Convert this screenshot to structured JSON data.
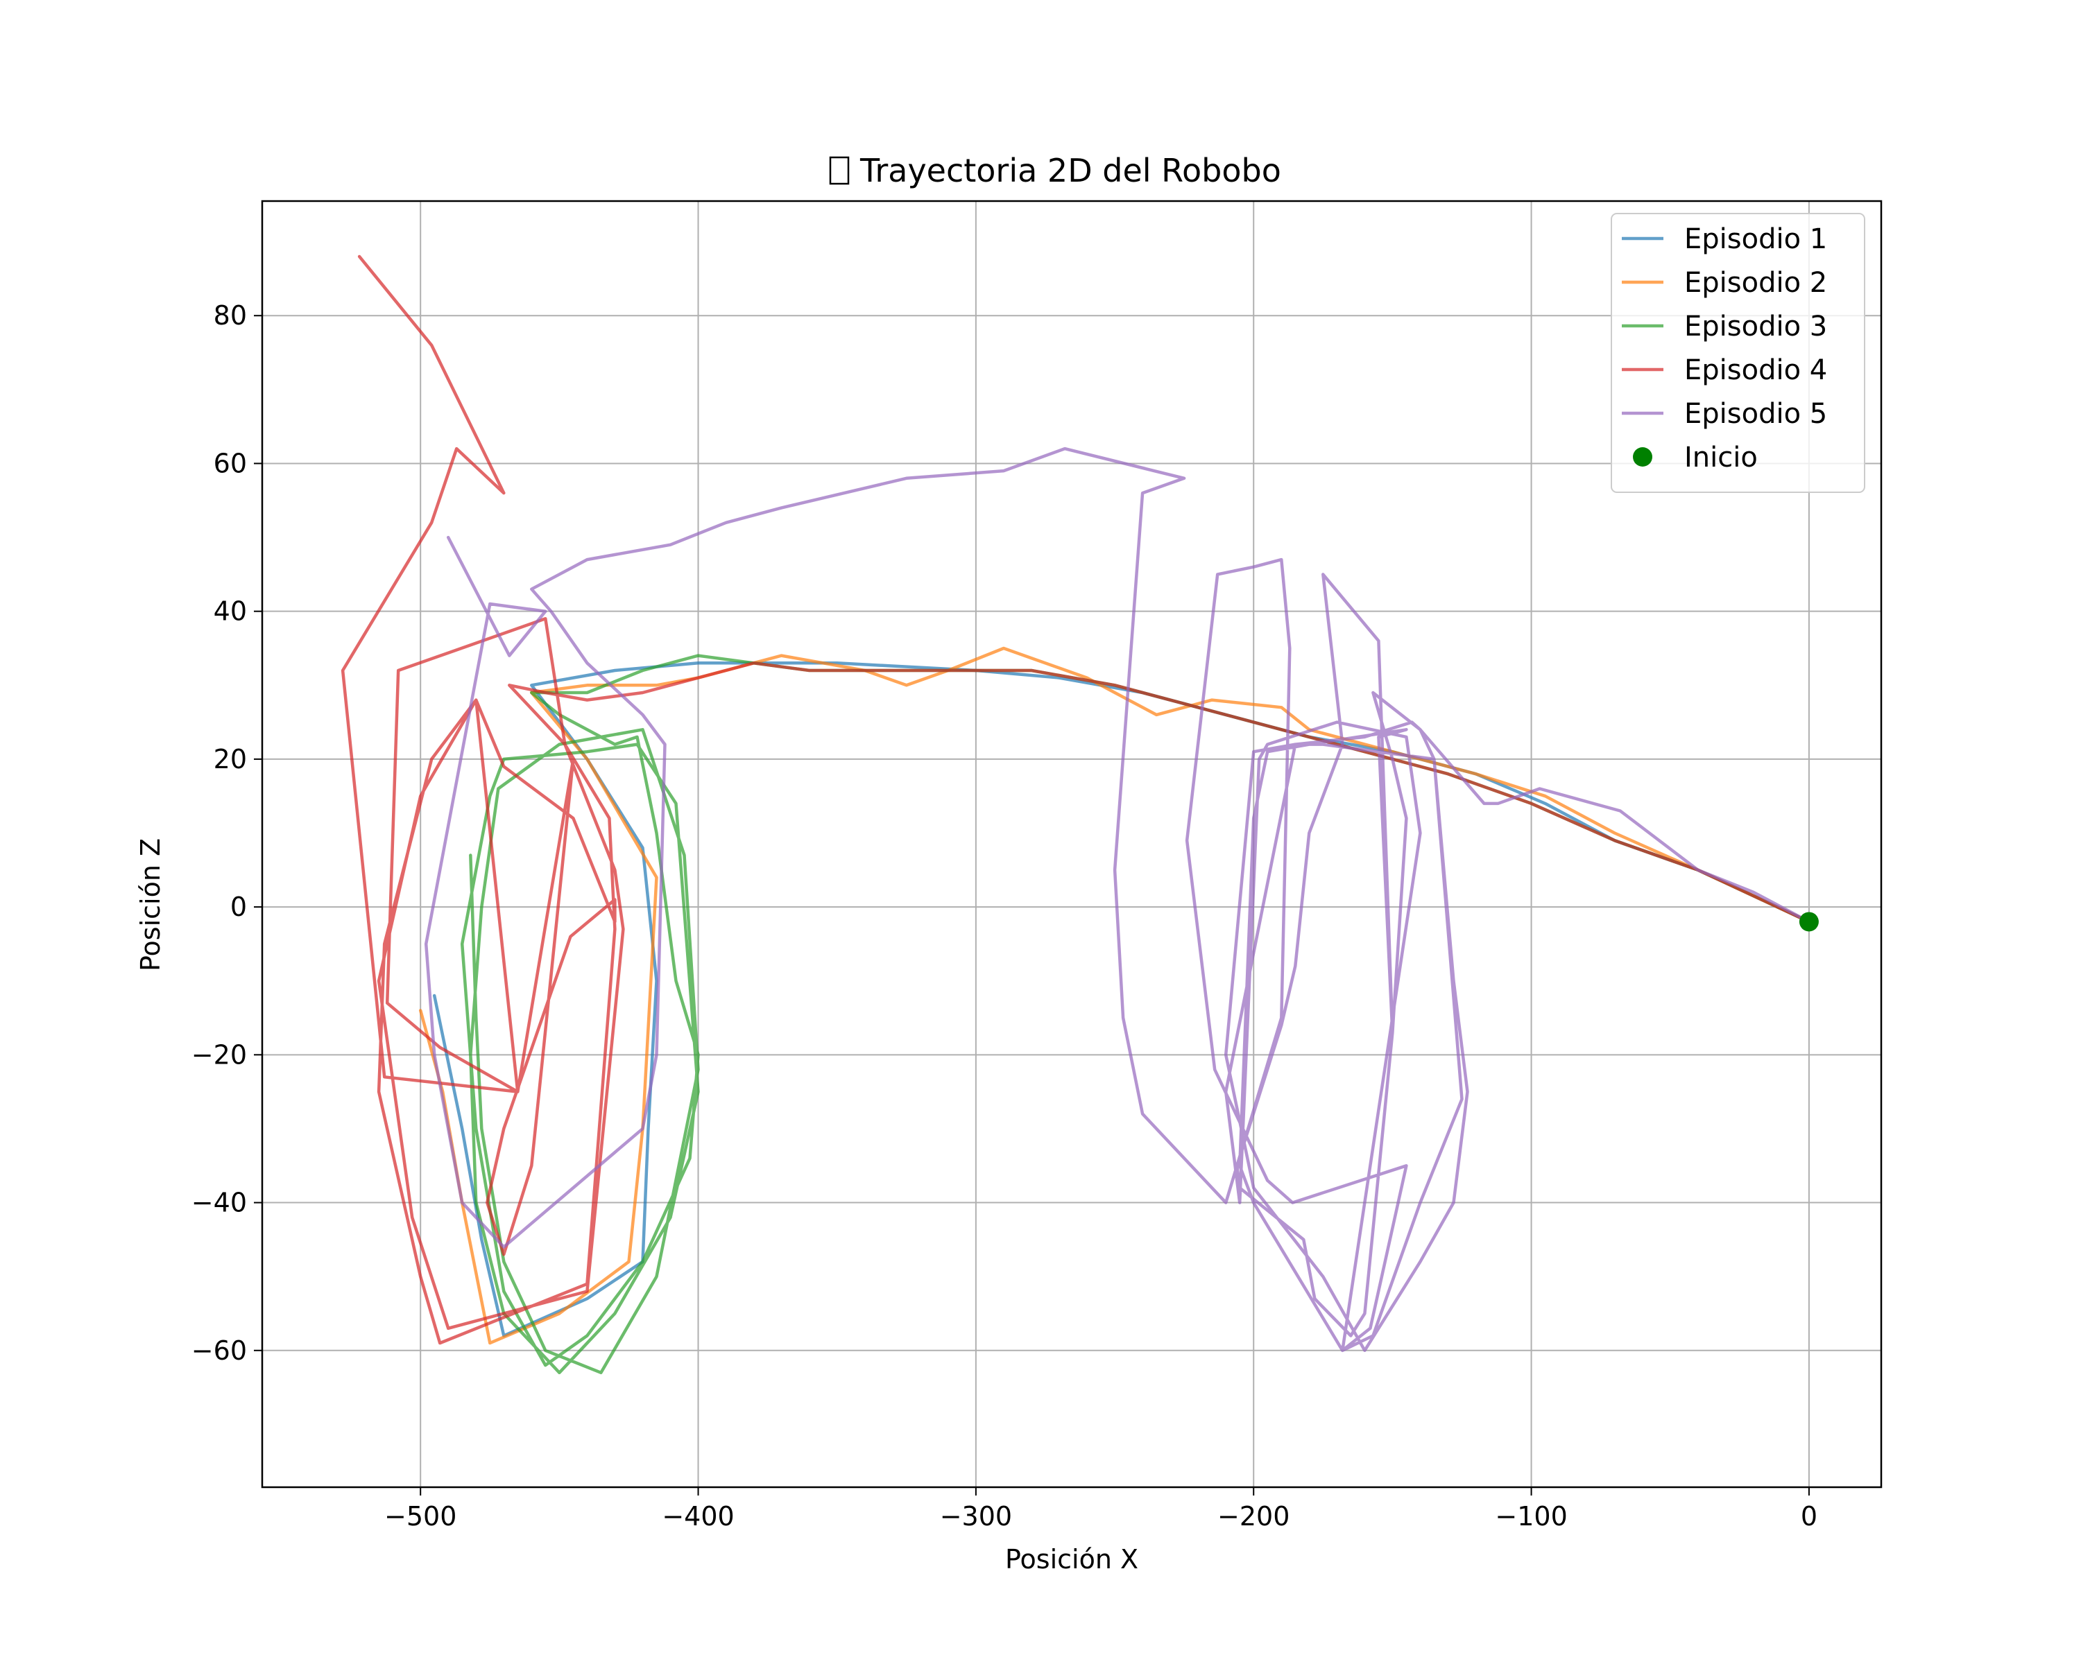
{
  "chart_data": {
    "type": "line",
    "title": "Trayectoria 2D del Robobo",
    "title_icon": "missing-glyph-box",
    "xlabel": "Posición X",
    "ylabel": "Posición Z",
    "xlim": [
      -557,
      26
    ],
    "ylim": [
      -78.5,
      95.5
    ],
    "xticks": [
      -500,
      -400,
      -300,
      -200,
      -100,
      0
    ],
    "yticks": [
      -60,
      -40,
      -20,
      0,
      20,
      40,
      60,
      80
    ],
    "xtick_labels": [
      "−500",
      "−400",
      "−300",
      "−200",
      "−100",
      "0"
    ],
    "ytick_labels": [
      "−60",
      "−40",
      "−20",
      "0",
      "20",
      "40",
      "60",
      "80"
    ],
    "grid": true,
    "legend_position": "top-right",
    "series": [
      {
        "name": "Episodio 1",
        "color": "#1f77b4",
        "points": [
          [
            0,
            -2
          ],
          [
            -40,
            5
          ],
          [
            -70,
            9
          ],
          [
            -95,
            14
          ],
          [
            -120,
            18
          ],
          [
            -150,
            21
          ],
          [
            -180,
            23
          ],
          [
            -210,
            26
          ],
          [
            -240,
            29
          ],
          [
            -270,
            31
          ],
          [
            -300,
            32
          ],
          [
            -350,
            33
          ],
          [
            -400,
            33
          ],
          [
            -430,
            32
          ],
          [
            -460,
            30
          ],
          [
            -440,
            20
          ],
          [
            -420,
            8
          ],
          [
            -415,
            -10
          ],
          [
            -418,
            -30
          ],
          [
            -420,
            -48
          ],
          [
            -440,
            -53
          ],
          [
            -470,
            -58
          ],
          [
            -478,
            -45
          ],
          [
            -485,
            -30
          ],
          [
            -495,
            -12
          ]
        ]
      },
      {
        "name": "Episodio 2",
        "color": "#ff7f0e",
        "points": [
          [
            0,
            -2
          ],
          [
            -40,
            5
          ],
          [
            -70,
            10
          ],
          [
            -95,
            15
          ],
          [
            -120,
            18
          ],
          [
            -150,
            21
          ],
          [
            -180,
            24
          ],
          [
            -190,
            27
          ],
          [
            -215,
            28
          ],
          [
            -235,
            26
          ],
          [
            -245,
            28
          ],
          [
            -260,
            31
          ],
          [
            -290,
            35
          ],
          [
            -310,
            32
          ],
          [
            -325,
            30
          ],
          [
            -340,
            32
          ],
          [
            -370,
            34
          ],
          [
            -400,
            31
          ],
          [
            -415,
            30
          ],
          [
            -440,
            30
          ],
          [
            -460,
            29
          ],
          [
            -440,
            20
          ],
          [
            -415,
            4
          ],
          [
            -420,
            -30
          ],
          [
            -425,
            -48
          ],
          [
            -450,
            -55
          ],
          [
            -475,
            -59
          ],
          [
            -485,
            -40
          ],
          [
            -492,
            -25
          ],
          [
            -500,
            -14
          ]
        ]
      },
      {
        "name": "Episodio 3",
        "color": "#2ca02c",
        "points": [
          [
            0,
            -2
          ],
          [
            -40,
            5
          ],
          [
            -70,
            9
          ],
          [
            -100,
            14
          ],
          [
            -130,
            18
          ],
          [
            -160,
            21
          ],
          [
            -190,
            24
          ],
          [
            -220,
            27
          ],
          [
            -250,
            30
          ],
          [
            -280,
            32
          ],
          [
            -310,
            32
          ],
          [
            -330,
            32
          ],
          [
            -360,
            32
          ],
          [
            -400,
            34
          ],
          [
            -420,
            32
          ],
          [
            -440,
            29
          ],
          [
            -460,
            29
          ],
          [
            -450,
            26
          ],
          [
            -430,
            22
          ],
          [
            -422,
            23
          ],
          [
            -415,
            10
          ],
          [
            -408,
            -10
          ],
          [
            -400,
            -20
          ],
          [
            -403,
            -34
          ],
          [
            -420,
            -48
          ],
          [
            -440,
            -58
          ],
          [
            -455,
            -62
          ],
          [
            -470,
            -52
          ],
          [
            -480,
            -30
          ],
          [
            -485,
            -5
          ],
          [
            -475,
            15
          ],
          [
            -470,
            20
          ],
          [
            -440,
            21
          ],
          [
            -422,
            22
          ],
          [
            -408,
            14
          ],
          [
            -400,
            -25
          ],
          [
            -410,
            -42
          ],
          [
            -430,
            -55
          ],
          [
            -450,
            -63
          ],
          [
            -470,
            -55
          ],
          [
            -480,
            -40
          ],
          [
            -482,
            -20
          ],
          [
            -478,
            0
          ],
          [
            -472,
            16
          ],
          [
            -450,
            22
          ],
          [
            -420,
            24
          ],
          [
            -405,
            7
          ],
          [
            -400,
            -22
          ],
          [
            -415,
            -50
          ],
          [
            -435,
            -63
          ],
          [
            -455,
            -60
          ],
          [
            -470,
            -48
          ],
          [
            -478,
            -30
          ],
          [
            -480,
            -15
          ],
          [
            -482,
            7
          ]
        ]
      },
      {
        "name": "Episodio 4",
        "color": "#d62728",
        "points": [
          [
            0,
            -2
          ],
          [
            -40,
            5
          ],
          [
            -70,
            9
          ],
          [
            -100,
            14
          ],
          [
            -130,
            18
          ],
          [
            -160,
            21
          ],
          [
            -190,
            24
          ],
          [
            -220,
            27
          ],
          [
            -250,
            30
          ],
          [
            -280,
            32
          ],
          [
            -310,
            32
          ],
          [
            -340,
            32
          ],
          [
            -360,
            32
          ],
          [
            -380,
            33
          ],
          [
            -400,
            31
          ],
          [
            -420,
            29
          ],
          [
            -440,
            28
          ],
          [
            -455,
            29
          ],
          [
            -468,
            30
          ],
          [
            -448,
            22
          ],
          [
            -430,
            5
          ],
          [
            -427,
            -3
          ],
          [
            -440,
            -52
          ],
          [
            -490,
            -57
          ],
          [
            -503,
            -42
          ],
          [
            -515,
            -10
          ],
          [
            -500,
            15
          ],
          [
            -480,
            28
          ],
          [
            -470,
            19
          ],
          [
            -445,
            12
          ],
          [
            -430,
            -2
          ],
          [
            -430,
            1
          ],
          [
            -446,
            -4
          ],
          [
            -470,
            -30
          ],
          [
            -476,
            -40
          ],
          [
            -470,
            -47
          ],
          [
            -460,
            -35
          ],
          [
            -445,
            20
          ],
          [
            -465,
            -25
          ],
          [
            -493,
            -19
          ],
          [
            -512,
            -13
          ],
          [
            -508,
            32
          ],
          [
            -455,
            39
          ],
          [
            -448,
            22
          ],
          [
            -432,
            12
          ],
          [
            -430,
            -3
          ],
          [
            -440,
            -51
          ],
          [
            -493,
            -59
          ],
          [
            -500,
            -50
          ],
          [
            -515,
            -25
          ],
          [
            -513,
            -5
          ],
          [
            -496,
            20
          ],
          [
            -480,
            28
          ],
          [
            -465,
            -25
          ],
          [
            -513,
            -23
          ],
          [
            -528,
            32
          ],
          [
            -496,
            52
          ],
          [
            -487,
            62
          ],
          [
            -470,
            56
          ],
          [
            -496,
            76
          ],
          [
            -522,
            88
          ]
        ]
      },
      {
        "name": "Episodio 5",
        "color": "#9467bd",
        "points": [
          [
            0,
            -2
          ],
          [
            -20,
            2
          ],
          [
            -40,
            5
          ],
          [
            -68,
            13
          ],
          [
            -97,
            16
          ],
          [
            -112,
            14
          ],
          [
            -117,
            14
          ],
          [
            -140,
            24
          ],
          [
            -143,
            25
          ],
          [
            -160,
            23
          ],
          [
            -185,
            22
          ],
          [
            -200,
            21
          ],
          [
            -210,
            -20
          ],
          [
            -200,
            -38
          ],
          [
            -175,
            -50
          ],
          [
            -160,
            -60
          ],
          [
            -140,
            -48
          ],
          [
            -128,
            -40
          ],
          [
            -123,
            -25
          ],
          [
            -128,
            -10
          ],
          [
            -135,
            20
          ],
          [
            -140,
            24
          ],
          [
            -157,
            29
          ],
          [
            -150,
            20
          ],
          [
            -145,
            12
          ],
          [
            -150,
            -17
          ],
          [
            -160,
            -55
          ],
          [
            -165,
            -58
          ],
          [
            -178,
            -53
          ],
          [
            -182,
            -45
          ],
          [
            -205,
            -38
          ],
          [
            -206,
            -35
          ],
          [
            -190,
            -16
          ],
          [
            -185,
            -8
          ],
          [
            -180,
            10
          ],
          [
            -168,
            22
          ],
          [
            -175,
            45
          ],
          [
            -155,
            36
          ],
          [
            -150,
            -17
          ],
          [
            -155,
            23
          ],
          [
            -145,
            24
          ],
          [
            -180,
            22
          ],
          [
            -195,
            21
          ],
          [
            -200,
            12
          ],
          [
            -205,
            -35
          ],
          [
            -200,
            -40
          ],
          [
            -168,
            -60
          ],
          [
            -157,
            -58
          ],
          [
            -140,
            -40
          ],
          [
            -125,
            -26
          ],
          [
            -135,
            20
          ],
          [
            -175,
            22
          ],
          [
            -185,
            22
          ],
          [
            -210,
            -25
          ],
          [
            -205,
            -40
          ],
          [
            -198,
            20
          ],
          [
            -195,
            22
          ],
          [
            -170,
            25
          ],
          [
            -145,
            23
          ],
          [
            -140,
            10
          ],
          [
            -168,
            -60
          ],
          [
            -158,
            -57
          ],
          [
            -145,
            -35
          ],
          [
            -186,
            -40
          ],
          [
            -195,
            -37
          ],
          [
            -214,
            -22
          ],
          [
            -224,
            9
          ],
          [
            -213,
            45
          ],
          [
            -200,
            46
          ],
          [
            -190,
            47
          ],
          [
            -187,
            35
          ],
          [
            -190,
            -15
          ],
          [
            -210,
            -40
          ],
          [
            -240,
            -28
          ],
          [
            -247,
            -15
          ],
          [
            -250,
            5
          ],
          [
            -240,
            56
          ],
          [
            -225,
            58
          ],
          [
            -268,
            62
          ],
          [
            -290,
            59
          ],
          [
            -325,
            58
          ],
          [
            -370,
            54
          ],
          [
            -390,
            52
          ],
          [
            -410,
            49
          ],
          [
            -440,
            47
          ],
          [
            -460,
            43
          ],
          [
            -453,
            40
          ],
          [
            -440,
            33
          ],
          [
            -420,
            26
          ],
          [
            -412,
            22
          ],
          [
            -415,
            -20
          ],
          [
            -420,
            -30
          ],
          [
            -470,
            -46
          ],
          [
            -485,
            -40
          ],
          [
            -495,
            -20
          ],
          [
            -498,
            -5
          ],
          [
            -475,
            41
          ],
          [
            -455,
            40
          ],
          [
            -468,
            34
          ],
          [
            -490,
            50
          ]
        ]
      }
    ],
    "markers": [
      {
        "name": "Inicio",
        "color": "#008000",
        "x": 0,
        "y": -2
      }
    ]
  }
}
